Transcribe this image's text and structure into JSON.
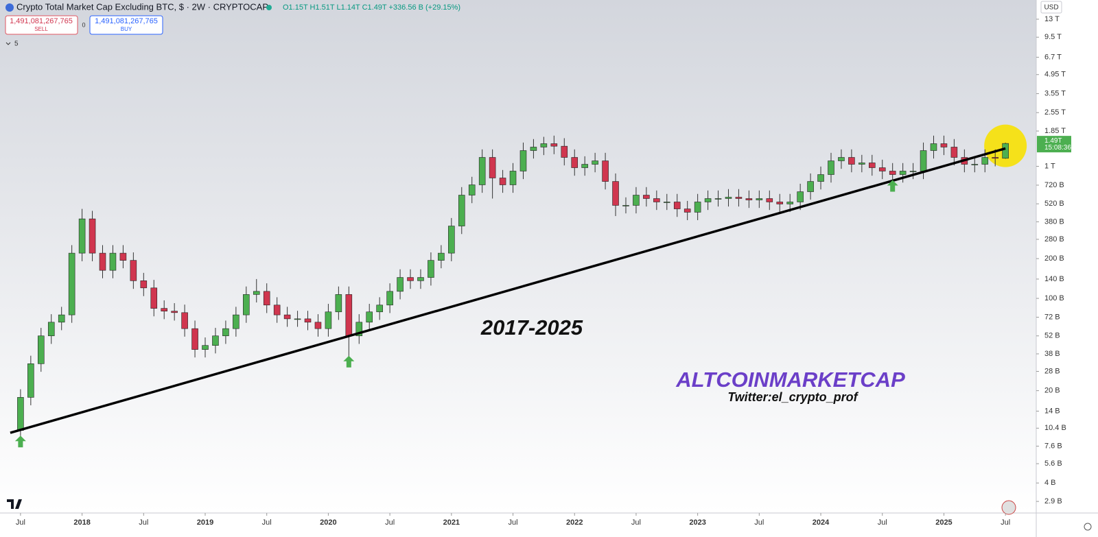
{
  "header": {
    "title": "Crypto Total Market Cap Excluding BTC, $ · 2W · CRYPTOCAP",
    "ohlc": "O1.15T H1.51T L1.14T C1.49T +336.56 B (+29.15%)",
    "sell_price": "1,491,081,267,765",
    "sell_label": "SELL",
    "spread": "0",
    "buy_price": "1,491,081,267,765",
    "buy_label": "BUY",
    "indicators": "5",
    "currency": "USD"
  },
  "chart_data": {
    "type": "candlestick",
    "log": true,
    "grid": false,
    "up_color": "#4caf50",
    "down_color": "#d0364f",
    "x": [
      "2017-07",
      "2017-08",
      "2017-09",
      "2017-10",
      "2017-11",
      "2017-12",
      "2018-01",
      "2018-02",
      "2018-03",
      "2018-04",
      "2018-05",
      "2018-06",
      "2018-07",
      "2018-08",
      "2018-09",
      "2018-10",
      "2018-11",
      "2018-12",
      "2019-01",
      "2019-02",
      "2019-03",
      "2019-04",
      "2019-05",
      "2019-06",
      "2019-07",
      "2019-08",
      "2019-09",
      "2019-10",
      "2019-11",
      "2019-12",
      "2020-01",
      "2020-02",
      "2020-03",
      "2020-04",
      "2020-05",
      "2020-06",
      "2020-07",
      "2020-08",
      "2020-09",
      "2020-10",
      "2020-11",
      "2020-12",
      "2021-01",
      "2021-02",
      "2021-03",
      "2021-04",
      "2021-05",
      "2021-06",
      "2021-07",
      "2021-08",
      "2021-09",
      "2021-10",
      "2021-11",
      "2021-12",
      "2022-01",
      "2022-02",
      "2022-03",
      "2022-04",
      "2022-05",
      "2022-06",
      "2022-07",
      "2022-08",
      "2022-09",
      "2022-10",
      "2022-11",
      "2022-12",
      "2023-01",
      "2023-02",
      "2023-03",
      "2023-04",
      "2023-05",
      "2023-06",
      "2023-07",
      "2023-08",
      "2023-09",
      "2023-10",
      "2023-11",
      "2023-12",
      "2024-01",
      "2024-02",
      "2024-03",
      "2024-04",
      "2024-05",
      "2024-06",
      "2024-07",
      "2024-08",
      "2024-09",
      "2024-10",
      "2024-11",
      "2024-12",
      "2025-01",
      "2025-02",
      "2025-03",
      "2025-04",
      "2025-05",
      "2025-06",
      "2025-07"
    ],
    "open": [
      10,
      17.8,
      32,
      52,
      66,
      75,
      220,
      400,
      220,
      163,
      220,
      194,
      136,
      120,
      84,
      80,
      78,
      59,
      41,
      44,
      52,
      59,
      75,
      107,
      113,
      89,
      75,
      70,
      70,
      66,
      59,
      79,
      107,
      52,
      66,
      79,
      89,
      113,
      144,
      136,
      144,
      194,
      220,
      353,
      605,
      724,
      1168,
      816,
      724,
      920,
      1316,
      1398,
      1484,
      1420,
      1168,
      976,
      1036,
      1100,
      768,
      506,
      506,
      605,
      570,
      537,
      537,
      476,
      449,
      537,
      570,
      570,
      584,
      570,
      556,
      570,
      537,
      518,
      537,
      642,
      768,
      866,
      1100,
      1168,
      1036,
      1062,
      976,
      920,
      866,
      920,
      920,
      1316,
      1484,
      1398,
      1168,
      1036,
      1036,
      1168,
      1150
    ],
    "high": [
      20.5,
      36.8,
      59.8,
      75.9,
      86.3,
      253,
      476,
      460,
      253,
      253,
      253,
      223,
      156,
      138,
      96.6,
      92,
      89.7,
      67.9,
      50.6,
      59.8,
      67.9,
      86.3,
      123,
      140,
      130,
      102,
      86.3,
      80.5,
      80.5,
      75.9,
      90.9,
      123,
      123,
      75.9,
      90.9,
      102,
      130,
      166,
      166,
      166,
      223,
      253,
      406,
      696,
      833,
      1343,
      1343,
      938,
      1058,
      1513,
      1608,
      1672,
      1707,
      1633,
      1343,
      1191,
      1265,
      1265,
      883,
      582,
      696,
      696,
      656,
      618,
      618,
      547,
      618,
      656,
      656,
      672,
      672,
      656,
      656,
      656,
      618,
      618,
      738,
      883,
      996,
      1265,
      1343,
      1343,
      1221,
      1221,
      1122,
      1058,
      1058,
      1058,
      1513,
      1707,
      1707,
      1608,
      1343,
      1191,
      1343,
      1343,
      1510
    ],
    "low": [
      8.7,
      15.5,
      27.8,
      45.2,
      57.4,
      65.3,
      191,
      191,
      142,
      142,
      169,
      118,
      104,
      73.1,
      69.6,
      67.9,
      51.3,
      35.7,
      35.7,
      38.3,
      45.2,
      51.3,
      65.3,
      93.1,
      77.4,
      65.3,
      60.9,
      60.9,
      57.4,
      51.3,
      51.3,
      68.7,
      36,
      45.2,
      57.4,
      68.7,
      77.4,
      98.3,
      118,
      118,
      125,
      169,
      191,
      307,
      526,
      630,
      570,
      630,
      630,
      800,
      1145,
      1216,
      1235,
      1016,
      849,
      849,
      901,
      668,
      420,
      440,
      440,
      496,
      467,
      467,
      414,
      391,
      391,
      467,
      496,
      496,
      496,
      484,
      484,
      467,
      451,
      451,
      467,
      559,
      668,
      753,
      957,
      901,
      901,
      849,
      800,
      753,
      753,
      800,
      800,
      1145,
      1216,
      1016,
      901,
      901,
      901,
      1000,
      1140
    ],
    "close": [
      17.8,
      32,
      52,
      66,
      75,
      220,
      400,
      220,
      163,
      220,
      194,
      136,
      120,
      84,
      80,
      78,
      59,
      41,
      44,
      52,
      59,
      75,
      107,
      113,
      89,
      75,
      70,
      70,
      66,
      59,
      79,
      107,
      52,
      66,
      79,
      89,
      113,
      144,
      136,
      144,
      194,
      220,
      353,
      605,
      724,
      1168,
      816,
      724,
      920,
      1316,
      1398,
      1484,
      1420,
      1168,
      976,
      1036,
      1100,
      768,
      506,
      506,
      605,
      570,
      537,
      537,
      476,
      449,
      537,
      570,
      570,
      584,
      570,
      556,
      570,
      537,
      518,
      537,
      642,
      768,
      866,
      1100,
      1168,
      1036,
      1062,
      976,
      920,
      866,
      920,
      920,
      1316,
      1484,
      1398,
      1168,
      1036,
      1036,
      1168,
      1150,
      1490
    ],
    "xlim": [
      "2017-05",
      "2025-10"
    ],
    "xticks": [
      {
        "value": "2017-07",
        "label": "Jul"
      },
      {
        "value": "2018-01",
        "label": "2018"
      },
      {
        "value": "2018-07",
        "label": "Jul"
      },
      {
        "value": "2019-01",
        "label": "2019"
      },
      {
        "value": "2019-07",
        "label": "Jul"
      },
      {
        "value": "2020-01",
        "label": "2020"
      },
      {
        "value": "2020-07",
        "label": "Jul"
      },
      {
        "value": "2021-01",
        "label": "2021"
      },
      {
        "value": "2021-07",
        "label": "Jul"
      },
      {
        "value": "2022-01",
        "label": "2022"
      },
      {
        "value": "2022-07",
        "label": "Jul"
      },
      {
        "value": "2023-01",
        "label": "2023"
      },
      {
        "value": "2023-07",
        "label": "Jul"
      },
      {
        "value": "2024-01",
        "label": "2024"
      },
      {
        "value": "2024-07",
        "label": "Jul"
      },
      {
        "value": "2025-01",
        "label": "2025"
      },
      {
        "value": "2025-07",
        "label": "Jul"
      }
    ],
    "ylim": [
      2.37,
      18170
    ],
    "yticks": [
      {
        "value": 13000,
        "label": "13 T"
      },
      {
        "value": 9500,
        "label": "9.5 T"
      },
      {
        "value": 6700,
        "label": "6.7 T"
      },
      {
        "value": 4950,
        "label": "4.95 T"
      },
      {
        "value": 3550,
        "label": "3.55 T"
      },
      {
        "value": 2550,
        "label": "2.55 T"
      },
      {
        "value": 1850,
        "label": "1.85 T"
      },
      {
        "value": 1000,
        "label": "1 T"
      },
      {
        "value": 720,
        "label": "720 B"
      },
      {
        "value": 520,
        "label": "520 B"
      },
      {
        "value": 380,
        "label": "380 B"
      },
      {
        "value": 280,
        "label": "280 B"
      },
      {
        "value": 200,
        "label": "200 B"
      },
      {
        "value": 140,
        "label": "140 B"
      },
      {
        "value": 100,
        "label": "100 B"
      },
      {
        "value": 72,
        "label": "72 B"
      },
      {
        "value": 52,
        "label": "52 B"
      },
      {
        "value": 38,
        "label": "38 B"
      },
      {
        "value": 28,
        "label": "28 B"
      },
      {
        "value": 20,
        "label": "20 B"
      },
      {
        "value": 14,
        "label": "14 B"
      },
      {
        "value": 10.4,
        "label": "10.4 B"
      },
      {
        "value": 7.6,
        "label": "7.6 B"
      },
      {
        "value": 5.6,
        "label": "5.6 B"
      },
      {
        "value": 4,
        "label": "4 B"
      },
      {
        "value": 2.9,
        "label": "2.9 B"
      }
    ],
    "price_tag": {
      "value": 1490,
      "label": "1.49T",
      "timer": "15:08:36"
    },
    "trendline": {
      "x": [
        "2017-06",
        "2025-07"
      ],
      "y": [
        9.6,
        1365
      ],
      "color": "#000000"
    },
    "signal_arrows": {
      "x": [
        "2017-07",
        "2020-03",
        "2024-08"
      ],
      "y": [
        8.2,
        33,
        707
      ],
      "color": "#4caf50"
    },
    "highlight": {
      "x": "2025-07",
      "y": 1430,
      "color": "#f5e11a"
    },
    "annotations": {
      "period": "2017-2025",
      "brand": "ALTCOINMARKETCAP",
      "handle": "Twitter:el_crypto_prof"
    }
  }
}
